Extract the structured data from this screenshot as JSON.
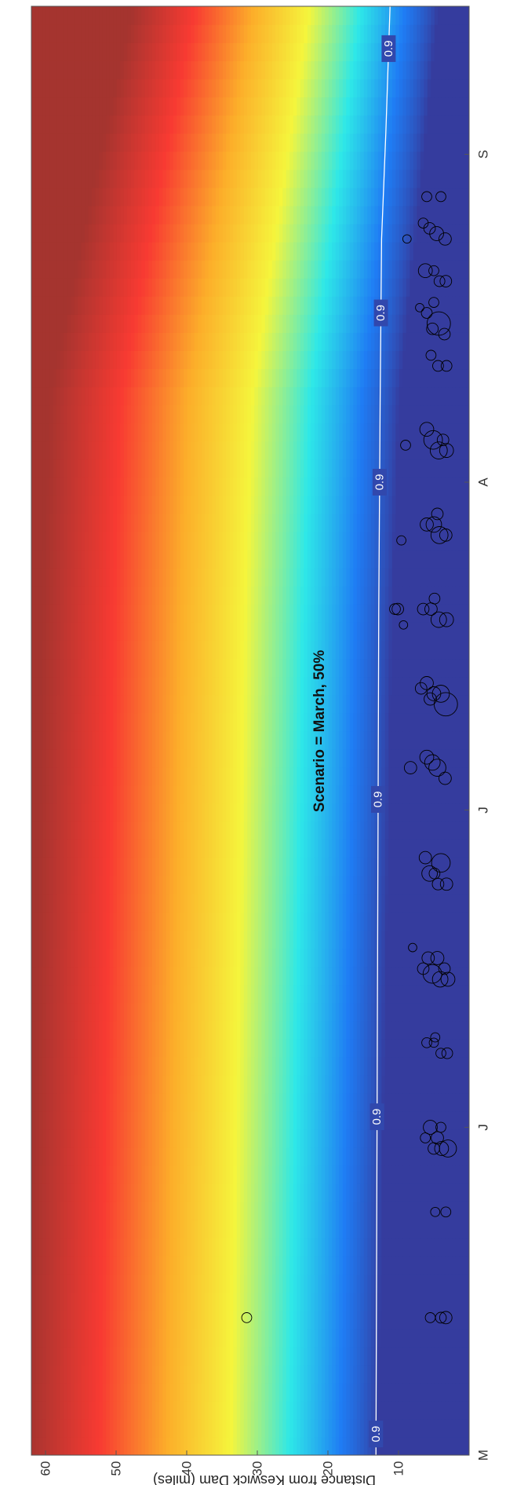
{
  "chart_data": {
    "type": "heatmap",
    "title": "Scenario = March, 50%",
    "orientation": "rotated-90-clockwise",
    "xlabel": "",
    "ylabel": "Distance from Keswick Dam (miles)",
    "x_ticks": [
      {
        "label": "M",
        "day": 0
      },
      {
        "label": "J",
        "day": 31
      },
      {
        "label": "J",
        "day": 61
      },
      {
        "label": "A",
        "day": 92
      },
      {
        "label": "S",
        "day": 123
      }
    ],
    "xlim_days": [
      0,
      137
    ],
    "ylim": [
      0,
      62
    ],
    "y_ticks": [
      10,
      20,
      30,
      40,
      50,
      60
    ],
    "colormap": [
      "#353c9e",
      "#1f7cf4",
      "#2ee8e8",
      "#f5f53c",
      "#fcae2a",
      "#f83a32",
      "#a5342f"
    ],
    "heat_field": {
      "description": "value rises with distance from dam; 0.9 contour near 13 miles",
      "profile_days": [
        0,
        20,
        40,
        60,
        80,
        100,
        120,
        137
      ],
      "onset_miles": [
        13.0,
        12.5,
        12.0,
        11.5,
        11.0,
        10.0,
        7.0,
        4.5
      ],
      "scale_miles": [
        15.5,
        15.5,
        15.5,
        15.5,
        15.5,
        15.5,
        14.5,
        13.5
      ]
    },
    "contour": {
      "label": "0.9",
      "color": "#ffffff",
      "points": [
        [
          0,
          13.2
        ],
        [
          20,
          13.1
        ],
        [
          40,
          13.0
        ],
        [
          60,
          12.9
        ],
        [
          80,
          12.8
        ],
        [
          100,
          12.6
        ],
        [
          115,
          12.4
        ],
        [
          125,
          11.8
        ],
        [
          137,
          11.2
        ]
      ],
      "label_days": [
        2,
        32,
        62,
        92,
        108,
        133
      ]
    },
    "marker_style": {
      "shape": "open-circle",
      "color": "#000000"
    },
    "markers": [
      {
        "day": 13,
        "mile": 3.3,
        "r": 1.6
      },
      {
        "day": 13,
        "mile": 4.0,
        "r": 1.4
      },
      {
        "day": 13,
        "mile": 5.5,
        "r": 1.3
      },
      {
        "day": 13,
        "mile": 31.5,
        "r": 1.3
      },
      {
        "day": 23,
        "mile": 3.3,
        "r": 1.3
      },
      {
        "day": 23,
        "mile": 4.8,
        "r": 1.2
      },
      {
        "day": 29,
        "mile": 3.0,
        "r": 2.2
      },
      {
        "day": 29,
        "mile": 3.9,
        "r": 1.8
      },
      {
        "day": 29,
        "mile": 5.0,
        "r": 1.5
      },
      {
        "day": 30,
        "mile": 4.5,
        "r": 1.6
      },
      {
        "day": 30,
        "mile": 6.2,
        "r": 1.3
      },
      {
        "day": 31,
        "mile": 5.5,
        "r": 1.8
      },
      {
        "day": 31,
        "mile": 4.0,
        "r": 1.3
      },
      {
        "day": 38,
        "mile": 3.1,
        "r": 1.4
      },
      {
        "day": 38,
        "mile": 4.0,
        "r": 1.3
      },
      {
        "day": 39,
        "mile": 5.0,
        "r": 1.2
      },
      {
        "day": 39,
        "mile": 6.0,
        "r": 1.3
      },
      {
        "day": 39.5,
        "mile": 4.8,
        "r": 1.2
      },
      {
        "day": 45,
        "mile": 3.0,
        "r": 1.8
      },
      {
        "day": 45,
        "mile": 4.1,
        "r": 2.0
      },
      {
        "day": 45.5,
        "mile": 5.2,
        "r": 2.4
      },
      {
        "day": 46,
        "mile": 3.5,
        "r": 1.5
      },
      {
        "day": 46,
        "mile": 6.5,
        "r": 1.5
      },
      {
        "day": 47,
        "mile": 4.5,
        "r": 1.7
      },
      {
        "day": 47,
        "mile": 5.8,
        "r": 1.6
      },
      {
        "day": 48,
        "mile": 8.0,
        "r": 1.1
      },
      {
        "day": 54,
        "mile": 3.2,
        "r": 1.6
      },
      {
        "day": 54,
        "mile": 4.4,
        "r": 1.5
      },
      {
        "day": 55,
        "mile": 5.6,
        "r": 2.0
      },
      {
        "day": 56,
        "mile": 4.0,
        "r": 2.4
      },
      {
        "day": 56.5,
        "mile": 6.2,
        "r": 1.6
      },
      {
        "day": 55,
        "mile": 4.9,
        "r": 1.4
      },
      {
        "day": 64,
        "mile": 3.4,
        "r": 1.6
      },
      {
        "day": 65,
        "mile": 4.5,
        "r": 2.2
      },
      {
        "day": 65.5,
        "mile": 5.2,
        "r": 2.0
      },
      {
        "day": 66,
        "mile": 6.0,
        "r": 1.8
      },
      {
        "day": 65,
        "mile": 8.3,
        "r": 1.6
      },
      {
        "day": 71,
        "mile": 3.3,
        "r": 3.0
      },
      {
        "day": 72,
        "mile": 4.0,
        "r": 2.2
      },
      {
        "day": 72,
        "mile": 5.0,
        "r": 1.8
      },
      {
        "day": 73,
        "mile": 6.0,
        "r": 1.7
      },
      {
        "day": 72.5,
        "mile": 6.8,
        "r": 1.5
      },
      {
        "day": 71.5,
        "mile": 5.5,
        "r": 1.6
      },
      {
        "day": 79,
        "mile": 3.2,
        "r": 1.8
      },
      {
        "day": 79,
        "mile": 4.3,
        "r": 2.0
      },
      {
        "day": 80,
        "mile": 5.4,
        "r": 1.6
      },
      {
        "day": 80,
        "mile": 6.5,
        "r": 1.5
      },
      {
        "day": 81,
        "mile": 4.9,
        "r": 1.4
      },
      {
        "day": 80,
        "mile": 10.1,
        "r": 1.5
      },
      {
        "day": 80,
        "mile": 10.5,
        "r": 1.4
      },
      {
        "day": 78.5,
        "mile": 9.3,
        "r": 1.1
      },
      {
        "day": 87,
        "mile": 3.3,
        "r": 1.6
      },
      {
        "day": 87,
        "mile": 4.2,
        "r": 2.2
      },
      {
        "day": 88,
        "mile": 5.0,
        "r": 2.0
      },
      {
        "day": 88,
        "mile": 6.0,
        "r": 1.7
      },
      {
        "day": 89,
        "mile": 4.5,
        "r": 1.5
      },
      {
        "day": 86.5,
        "mile": 9.6,
        "r": 1.2
      },
      {
        "day": 95,
        "mile": 3.2,
        "r": 1.8
      },
      {
        "day": 95,
        "mile": 4.3,
        "r": 2.2
      },
      {
        "day": 96,
        "mile": 5.1,
        "r": 2.4
      },
      {
        "day": 97,
        "mile": 6.0,
        "r": 1.8
      },
      {
        "day": 96,
        "mile": 3.7,
        "r": 1.5
      },
      {
        "day": 95.5,
        "mile": 9.0,
        "r": 1.3
      },
      {
        "day": 103,
        "mile": 3.2,
        "r": 1.4
      },
      {
        "day": 103,
        "mile": 4.4,
        "r": 1.4
      },
      {
        "day": 104,
        "mile": 5.4,
        "r": 1.3
      },
      {
        "day": 107,
        "mile": 4.3,
        "r": 3.0
      },
      {
        "day": 106,
        "mile": 3.5,
        "r": 1.5
      },
      {
        "day": 106.5,
        "mile": 5.2,
        "r": 1.5
      },
      {
        "day": 108,
        "mile": 6.0,
        "r": 1.4
      },
      {
        "day": 109,
        "mile": 5.0,
        "r": 1.3
      },
      {
        "day": 108.5,
        "mile": 7.0,
        "r": 1.1
      },
      {
        "day": 111,
        "mile": 3.3,
        "r": 1.5
      },
      {
        "day": 111,
        "mile": 4.2,
        "r": 1.4
      },
      {
        "day": 112,
        "mile": 6.2,
        "r": 1.8
      },
      {
        "day": 112,
        "mile": 5.0,
        "r": 1.3
      },
      {
        "day": 115,
        "mile": 3.4,
        "r": 1.6
      },
      {
        "day": 115.5,
        "mile": 4.6,
        "r": 1.8
      },
      {
        "day": 116,
        "mile": 5.6,
        "r": 1.5
      },
      {
        "day": 116.5,
        "mile": 6.5,
        "r": 1.3
      },
      {
        "day": 115,
        "mile": 8.8,
        "r": 1.1
      },
      {
        "day": 119,
        "mile": 4.0,
        "r": 1.3
      },
      {
        "day": 119,
        "mile": 6.0,
        "r": 1.3
      }
    ]
  }
}
